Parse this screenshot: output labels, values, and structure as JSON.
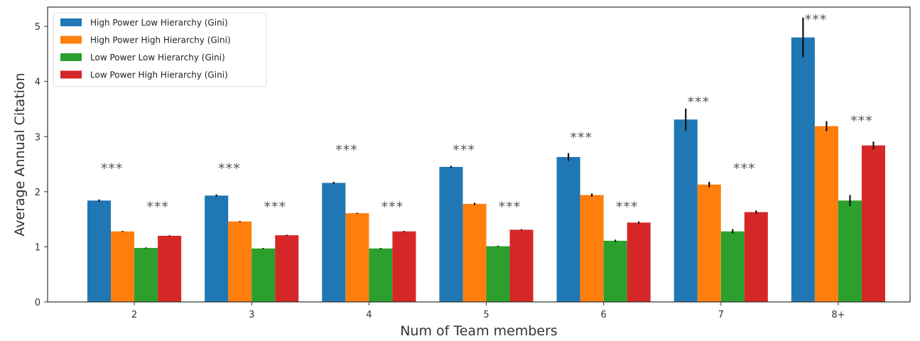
{
  "chart_data": {
    "type": "bar",
    "title": "",
    "xlabel": "Num of Team members",
    "ylabel": "Average Annual Citation",
    "ylim": [
      0,
      5.35
    ],
    "yticks": [
      0,
      1,
      2,
      3,
      4,
      5
    ],
    "grid": false,
    "legend_position": "top-left",
    "categories": [
      "2",
      "3",
      "4",
      "5",
      "6",
      "7",
      "8+"
    ],
    "series": [
      {
        "name": "High Power Low Hierarchy (Gini)",
        "color": "#1f77b4",
        "values": [
          1.84,
          1.93,
          2.16,
          2.45,
          2.63,
          3.31,
          4.8
        ],
        "errors": [
          0.02,
          0.02,
          0.02,
          0.02,
          0.07,
          0.2,
          0.36
        ]
      },
      {
        "name": "High Power High Hierarchy (Gini)",
        "color": "#ff7f0e",
        "values": [
          1.28,
          1.46,
          1.61,
          1.78,
          1.94,
          2.13,
          3.19
        ],
        "errors": [
          0.01,
          0.01,
          0.01,
          0.02,
          0.03,
          0.05,
          0.09
        ]
      },
      {
        "name": "Low Power Low Hierarchy (Gini)",
        "color": "#2ca02c",
        "values": [
          0.98,
          0.97,
          0.97,
          1.01,
          1.11,
          1.28,
          1.84
        ],
        "errors": [
          0.01,
          0.01,
          0.01,
          0.01,
          0.02,
          0.04,
          0.1
        ]
      },
      {
        "name": "Low Power High Hierarchy (Gini)",
        "color": "#d62728",
        "values": [
          1.2,
          1.21,
          1.28,
          1.31,
          1.44,
          1.63,
          2.84
        ],
        "errors": [
          0.01,
          0.01,
          0.01,
          0.01,
          0.02,
          0.03,
          0.07
        ]
      }
    ],
    "annotations": [
      {
        "text": "***",
        "category_index": 0,
        "series_pair": "high_power",
        "y": 2.42
      },
      {
        "text": "***",
        "category_index": 0,
        "series_pair": "low_power",
        "y": 1.72
      },
      {
        "text": "***",
        "category_index": 1,
        "series_pair": "high_power",
        "y": 2.42
      },
      {
        "text": "***",
        "category_index": 1,
        "series_pair": "low_power",
        "y": 1.72
      },
      {
        "text": "***",
        "category_index": 2,
        "series_pair": "high_power",
        "y": 2.75
      },
      {
        "text": "***",
        "category_index": 2,
        "series_pair": "low_power",
        "y": 1.72
      },
      {
        "text": "***",
        "category_index": 3,
        "series_pair": "high_power",
        "y": 2.75
      },
      {
        "text": "***",
        "category_index": 3,
        "series_pair": "low_power",
        "y": 1.72
      },
      {
        "text": "***",
        "category_index": 4,
        "series_pair": "high_power",
        "y": 2.98
      },
      {
        "text": "***",
        "category_index": 4,
        "series_pair": "low_power",
        "y": 1.72
      },
      {
        "text": "***",
        "category_index": 5,
        "series_pair": "high_power",
        "y": 3.62
      },
      {
        "text": "***",
        "category_index": 5,
        "series_pair": "low_power",
        "y": 2.42
      },
      {
        "text": "***",
        "category_index": 6,
        "series_pair": "high_power",
        "y": 5.12
      },
      {
        "text": "***",
        "category_index": 6,
        "series_pair": "low_power",
        "y": 3.28
      }
    ]
  }
}
